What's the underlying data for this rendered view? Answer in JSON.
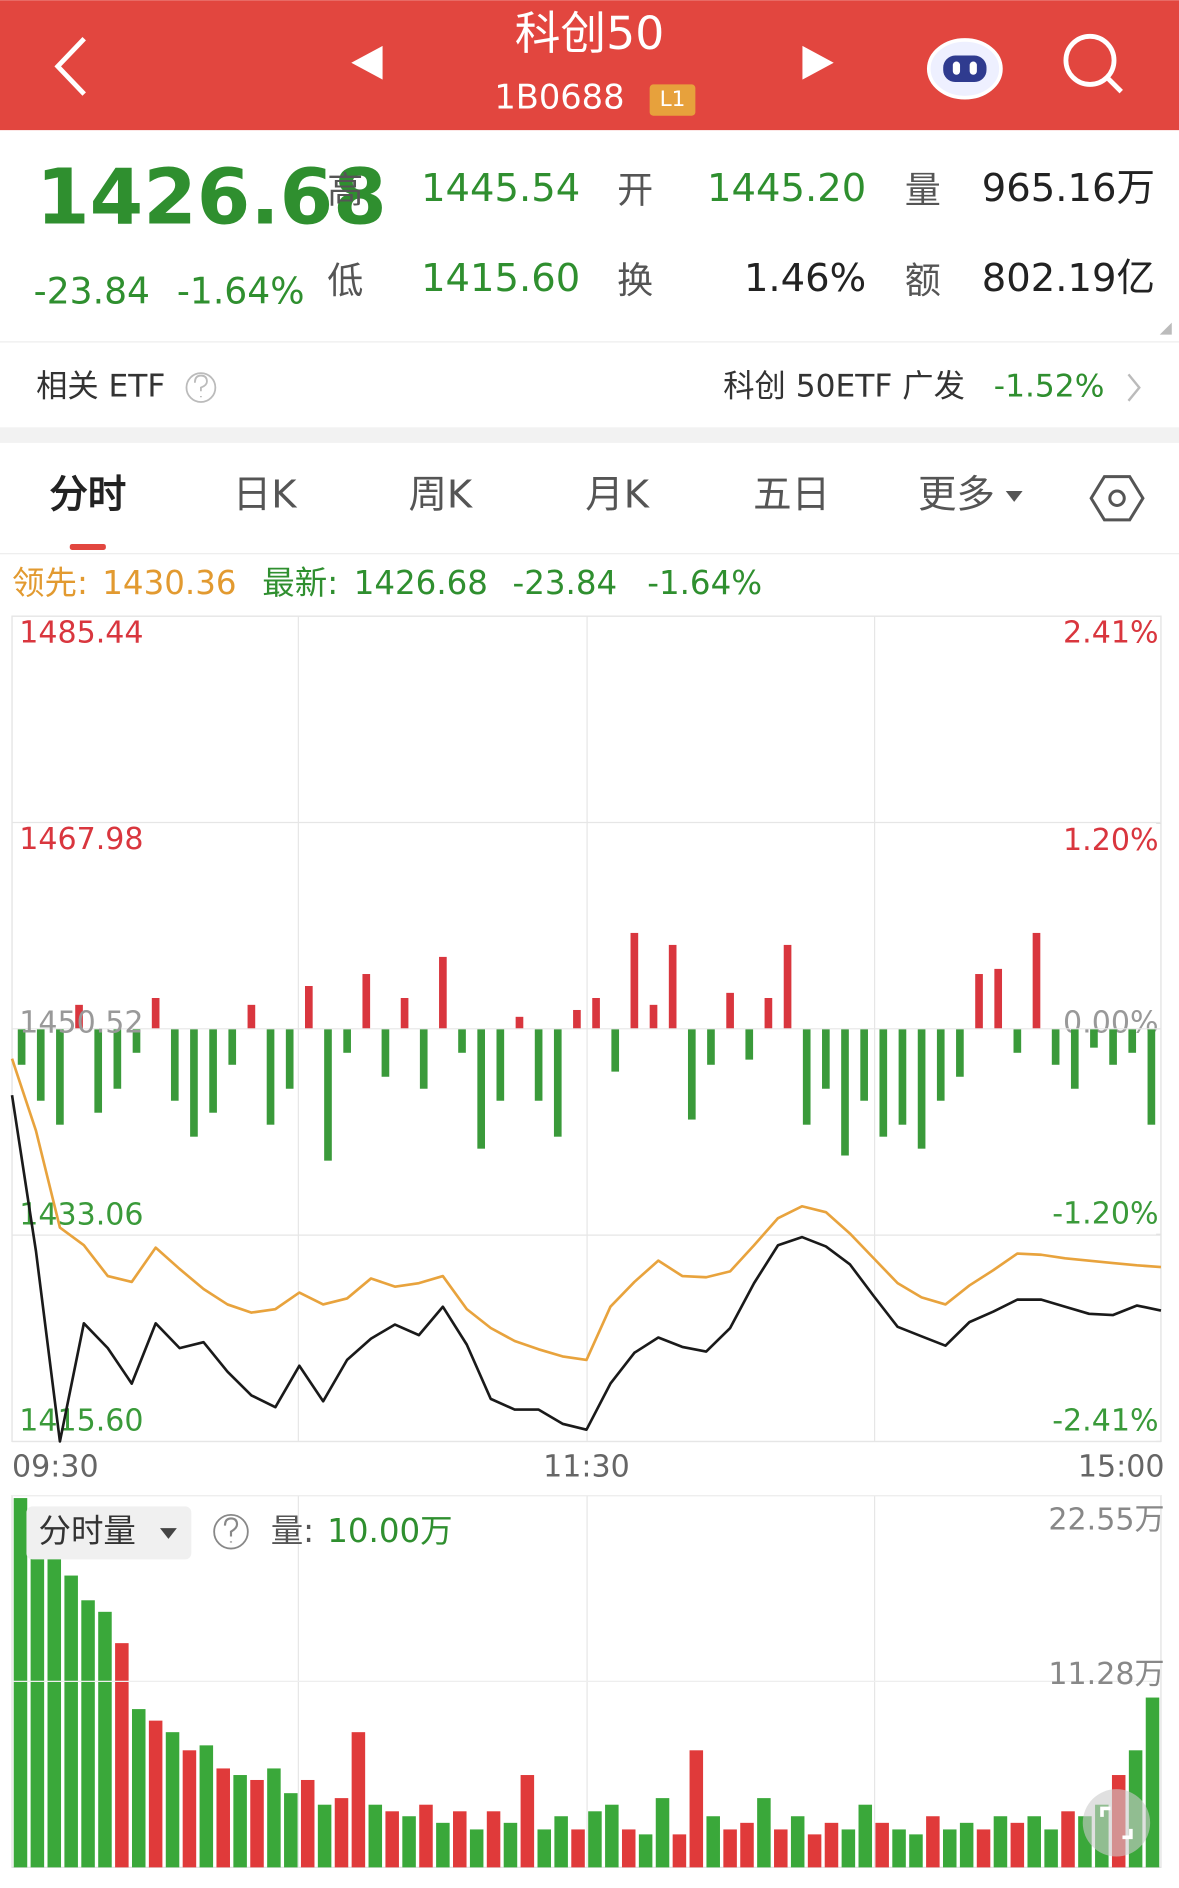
{
  "header": {
    "title": "科创50",
    "code": "1B0688",
    "badge": "L1"
  },
  "quote": {
    "price": "1426.68",
    "change": "-23.84",
    "change_pct": "-1.64%",
    "stats": [
      {
        "label": "高",
        "value": "1445.54"
      },
      {
        "label": "开",
        "value": "1445.20"
      },
      {
        "label": "量",
        "value": "965.16万"
      },
      {
        "label": "低",
        "value": "1415.60"
      },
      {
        "label": "换",
        "value": "1.46%"
      },
      {
        "label": "额",
        "value": "802.19亿"
      }
    ]
  },
  "etf": {
    "label": "相关 ETF",
    "name": "科创 50ETF 广发",
    "change": "-1.52%"
  },
  "tabs": [
    "分时",
    "日K",
    "周K",
    "月K",
    "五日",
    "更多"
  ],
  "legend": {
    "lead_label": "领先:",
    "lead_value": "1430.36",
    "latest_label": "最新:",
    "latest_value": "1426.68",
    "change": "-23.84",
    "change_pct": "-1.64%"
  },
  "volume_panel": {
    "selector": "分时量",
    "volume_label": "量:",
    "volume_value": "10.00万"
  },
  "chart_data": [
    {
      "type": "line",
      "ylim": [
        1415.6,
        1485.44
      ],
      "yticks": [
        1485.44,
        1467.98,
        1450.52,
        1433.06,
        {
          "value": 1415.6,
          "label": "1415.60"
        }
      ],
      "y2lim": [
        -2.41,
        2.41
      ],
      "y2ticks": [
        {
          "value": 2.41,
          "label": "2.41%"
        },
        {
          "value": 1.2,
          "label": "1.20%"
        },
        {
          "value": 0,
          "label": "0.00%"
        },
        {
          "value": -1.2,
          "label": "-1.20%"
        },
        {
          "value": -2.41,
          "label": "-2.41%"
        }
      ],
      "xticks": [
        "09:30",
        "11:30",
        "15:00"
      ],
      "up_color": "#d9363e",
      "down_color": "#3a9a3a",
      "flat_color": "#999999",
      "grid": true,
      "series": [
        {
          "color": "#1a1a1a",
          "values": [
            1444.9,
            1431.7,
            1415.6,
            1425.6,
            1423.5,
            1420.5,
            1425.6,
            1423.5,
            1424.0,
            1421.5,
            1419.5,
            1418.5,
            1422.0,
            1419.0,
            1422.5,
            1424.3,
            1425.5,
            1424.6,
            1427.0,
            1423.8,
            1419.2,
            1418.3,
            1418.3,
            1417.1,
            1416.6,
            1420.5,
            1423.1,
            1424.4,
            1423.6,
            1423.2,
            1425.2,
            1429.0,
            1432.2,
            1432.9,
            1432.1,
            1430.6,
            1427.9,
            1425.3,
            1424.5,
            1423.7,
            1425.7,
            1426.6,
            1427.6,
            1427.6,
            1427.0,
            1426.4,
            1426.3,
            1427.1,
            1426.68
          ]
        },
        {
          "color": "#e8a33d",
          "values": [
            1448.0,
            1441.9,
            1433.7,
            1432.2,
            1429.6,
            1429.1,
            1432.0,
            1430.2,
            1428.5,
            1427.2,
            1426.5,
            1426.8,
            1428.2,
            1427.2,
            1427.7,
            1429.4,
            1428.7,
            1429.0,
            1429.6,
            1426.8,
            1425.2,
            1424.1,
            1423.4,
            1422.8,
            1422.5,
            1427.0,
            1429.1,
            1430.9,
            1429.6,
            1429.5,
            1430.0,
            1432.2,
            1434.5,
            1435.5,
            1435.0,
            1433.2,
            1431.1,
            1429.0,
            1427.8,
            1427.2,
            1428.8,
            1430.1,
            1431.5,
            1431.4,
            1431.1,
            1430.9,
            1430.7,
            1430.5,
            1430.36
          ]
        },
        {
          "kind": "bar",
          "axis": "y2",
          "values": [
            -0.21,
            -0.42,
            -0.56,
            0.14,
            -0.49,
            -0.35,
            -0.14,
            0.18,
            -0.42,
            -0.63,
            -0.49,
            -0.21,
            0.14,
            -0.56,
            -0.35,
            0.25,
            -0.77,
            -0.14,
            0.32,
            -0.28,
            0.18,
            -0.35,
            0.42,
            -0.14,
            -0.7,
            -0.42,
            0.07,
            -0.42,
            -0.63,
            0.11,
            0.18,
            -0.25,
            0.56,
            0.14,
            0.49,
            -0.53,
            -0.21,
            0.21,
            -0.18,
            0.18,
            0.49,
            -0.56,
            -0.35,
            -0.74,
            -0.42,
            -0.63,
            -0.56,
            -0.7,
            -0.42,
            -0.28,
            0.32,
            0.35,
            -0.14,
            0.56,
            -0.21,
            -0.35,
            -0.11,
            -0.21,
            -0.14,
            -0.56
          ]
        }
      ]
    },
    {
      "type": "bar",
      "ylim": [
        0,
        22.55
      ],
      "yticks": [
        {
          "value": 22.55,
          "label": "22.55万"
        },
        {
          "value": 11.28,
          "label": "11.28万"
        }
      ],
      "values": [
        22.4,
        20.6,
        19.1,
        17.7,
        16.2,
        15.5,
        13.6,
        9.6,
        8.9,
        8.2,
        7.1,
        7.4,
        6.0,
        5.6,
        5.3,
        6.0,
        4.5,
        5.3,
        3.8,
        4.2,
        8.2,
        3.8,
        3.4,
        3.1,
        3.8,
        2.7,
        3.4,
        2.3,
        3.4,
        2.7,
        5.6,
        2.3,
        3.1,
        2.3,
        3.4,
        3.8,
        2.3,
        2.0,
        4.2,
        2.0,
        7.1,
        3.1,
        2.3,
        2.7,
        4.2,
        2.3,
        3.1,
        2.0,
        2.7,
        2.3,
        3.8,
        2.7,
        2.3,
        2.0,
        3.1,
        2.3,
        2.7,
        2.3,
        3.1,
        2.7,
        3.1,
        2.3,
        3.4,
        3.1,
        3.8,
        5.6,
        7.1,
        10.3
      ],
      "colors": [
        "#3aa83a",
        "#3aa83a",
        "#3aa83a",
        "#3aa83a",
        "#3aa83a",
        "#3aa83a",
        "#e03a3a",
        "#3aa83a",
        "#e03a3a",
        "#3aa83a",
        "#e03a3a",
        "#3aa83a",
        "#e03a3a",
        "#3aa83a",
        "#e03a3a",
        "#3aa83a",
        "#3aa83a",
        "#e03a3a",
        "#3aa83a",
        "#e03a3a",
        "#e03a3a",
        "#3aa83a",
        "#e03a3a",
        "#3aa83a",
        "#e03a3a",
        "#3aa83a",
        "#e03a3a",
        "#3aa83a",
        "#e03a3a",
        "#3aa83a",
        "#e03a3a",
        "#3aa83a",
        "#3aa83a",
        "#e03a3a",
        "#3aa83a",
        "#3aa83a",
        "#e03a3a",
        "#3aa83a",
        "#3aa83a",
        "#e03a3a",
        "#e03a3a",
        "#3aa83a",
        "#e03a3a",
        "#e03a3a",
        "#3aa83a",
        "#e03a3a",
        "#3aa83a",
        "#e03a3a",
        "#e03a3a",
        "#3aa83a",
        "#3aa83a",
        "#e03a3a",
        "#3aa83a",
        "#3aa83a",
        "#e03a3a",
        "#3aa83a",
        "#3aa83a",
        "#e03a3a",
        "#3aa83a",
        "#e03a3a",
        "#3aa83a",
        "#3aa83a",
        "#e03a3a",
        "#3aa83a",
        "#3aa83a",
        "#e03a3a",
        "#3aa83a",
        "#3aa83a"
      ]
    }
  ]
}
